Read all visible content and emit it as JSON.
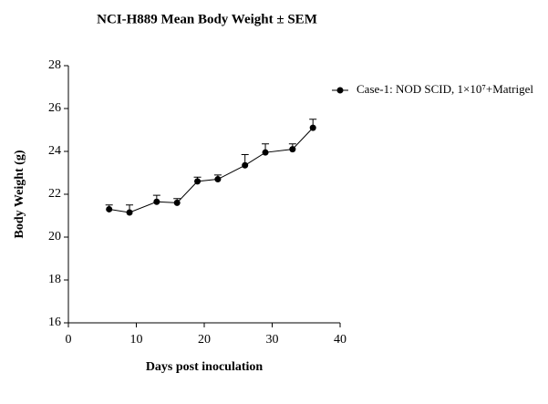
{
  "chart_data": {
    "type": "line",
    "title": "NCI-H889 Mean Body Weight ± SEM",
    "x_label": "Days post inoculation",
    "y_label": "Body Weight (g)",
    "x": [
      6,
      9,
      13,
      16,
      19,
      22,
      26,
      29,
      33,
      36
    ],
    "series": [
      {
        "name": "Case-1: NOD SCID, 1×10⁷+Matrigel",
        "color": "#000000",
        "values": [
          21.3,
          21.15,
          21.65,
          21.6,
          22.6,
          22.7,
          23.35,
          23.95,
          24.1,
          25.1
        ],
        "errors": [
          0.2,
          0.35,
          0.3,
          0.2,
          0.2,
          0.2,
          0.5,
          0.4,
          0.25,
          0.4
        ]
      }
    ],
    "xlim": [
      0,
      40
    ],
    "xticks": [
      0,
      10,
      20,
      30,
      40
    ],
    "ylim": [
      16,
      28
    ],
    "yticks": [
      16,
      18,
      20,
      22,
      24,
      26,
      28
    ],
    "grid": false,
    "legend": "upper right"
  }
}
